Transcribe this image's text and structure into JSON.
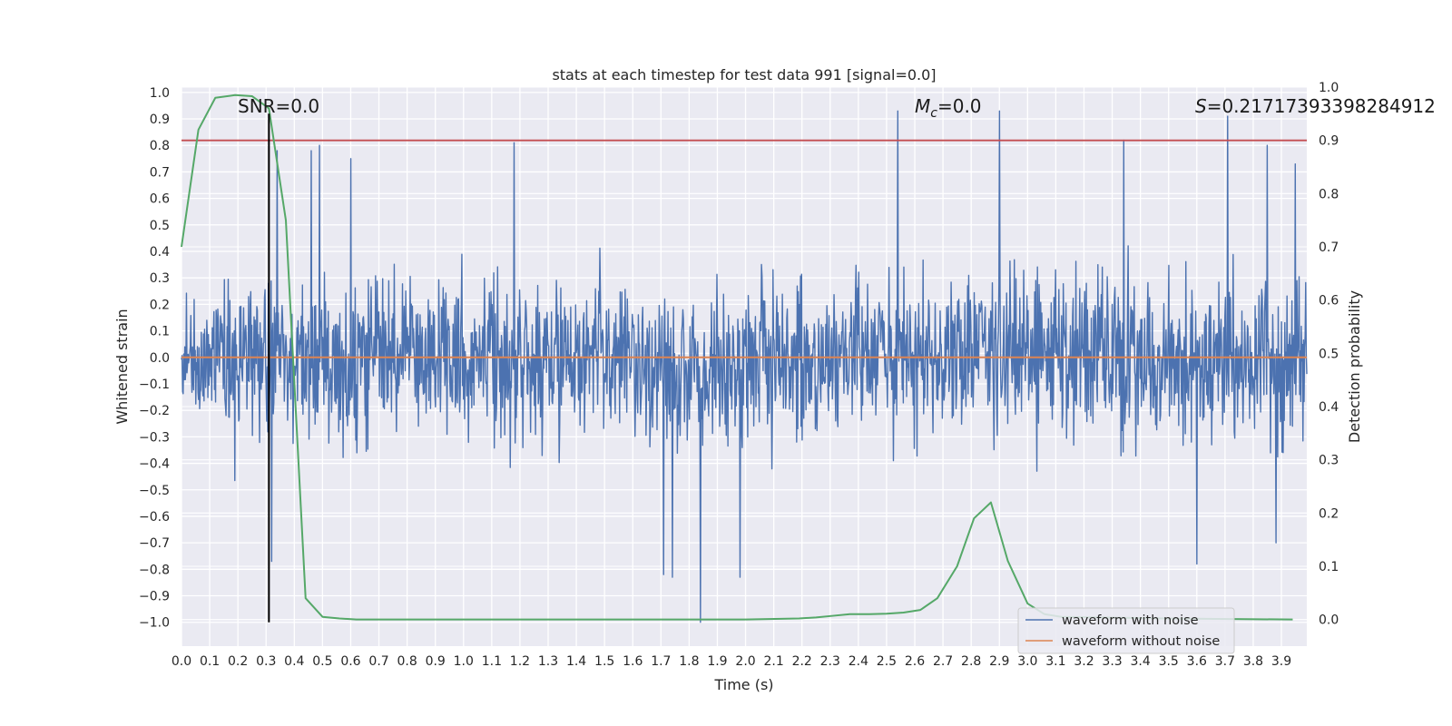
{
  "chart_data": {
    "type": "line",
    "title": "stats at each timestep for test data 991 [signal=0.0]",
    "xlabel": "Time (s)",
    "ylabel": "Whitened strain",
    "y2label": "Detection probability",
    "xlim": [
      0.0,
      3.99
    ],
    "ylim": [
      -1.09,
      1.02
    ],
    "y2lim": [
      -0.05,
      1.0
    ],
    "x_ticks": [
      0.0,
      0.1,
      0.2,
      0.3,
      0.4,
      0.5,
      0.6,
      0.7,
      0.8,
      0.9,
      1.0,
      1.1,
      1.2,
      1.3,
      1.4,
      1.5,
      1.6,
      1.7,
      1.8,
      1.9,
      2.0,
      2.1,
      2.2,
      2.3,
      2.4,
      2.5,
      2.6,
      2.7,
      2.8,
      2.9,
      3.0,
      3.1,
      3.2,
      3.3,
      3.4,
      3.5,
      3.6,
      3.7,
      3.8,
      3.9
    ],
    "y_ticks": [
      -1.0,
      -0.9,
      -0.8,
      -0.7,
      -0.6,
      -0.5,
      -0.4,
      -0.3,
      -0.2,
      -0.1,
      0.0,
      0.1,
      0.2,
      0.3,
      0.4,
      0.5,
      0.6,
      0.7,
      0.8,
      0.9,
      1.0
    ],
    "y2_ticks": [
      0.0,
      0.1,
      0.2,
      0.3,
      0.4,
      0.5,
      0.6,
      0.7,
      0.8,
      0.9,
      1.0
    ],
    "grid": true,
    "noise": {
      "name": "waveform with noise",
      "color": "#4c72b0",
      "samples": 2048,
      "t_end": 3.99,
      "seed": 991,
      "spikes": [
        {
          "t": 0.32,
          "v": -0.77
        },
        {
          "t": 0.34,
          "v": 0.78
        },
        {
          "t": 0.46,
          "v": 0.78
        },
        {
          "t": 0.49,
          "v": 0.8
        },
        {
          "t": 0.6,
          "v": 0.75
        },
        {
          "t": 1.18,
          "v": 0.81
        },
        {
          "t": 1.71,
          "v": -0.82
        },
        {
          "t": 1.74,
          "v": -0.83
        },
        {
          "t": 1.84,
          "v": -1.0
        },
        {
          "t": 1.98,
          "v": -0.83
        },
        {
          "t": 2.54,
          "v": 0.93
        },
        {
          "t": 2.9,
          "v": 0.93
        },
        {
          "t": 3.34,
          "v": 0.82
        },
        {
          "t": 3.6,
          "v": -0.78
        },
        {
          "t": 3.71,
          "v": 0.91
        },
        {
          "t": 3.85,
          "v": 0.8
        },
        {
          "t": 3.88,
          "v": -0.7
        },
        {
          "t": 3.95,
          "v": 0.73
        }
      ]
    },
    "clean": {
      "name": "waveform without noise",
      "color": "#dd8452",
      "value": 0.0
    },
    "threshold": {
      "color": "#c44e52",
      "value": 0.9
    },
    "marker": {
      "color": "#000000",
      "t": 0.31,
      "y_from": -1.0,
      "y_to": 0.92
    },
    "probability": {
      "color": "#55a868",
      "x": [
        0.0,
        0.06,
        0.12,
        0.19,
        0.25,
        0.31,
        0.37,
        0.44,
        0.5,
        0.56,
        0.62,
        1.0,
        1.5,
        2.0,
        2.19,
        2.25,
        2.31,
        2.37,
        2.44,
        2.5,
        2.56,
        2.62,
        2.68,
        2.75,
        2.81,
        2.87,
        2.93,
        3.0,
        3.06,
        3.12,
        3.5,
        3.94
      ],
      "y": [
        0.7,
        0.92,
        0.98,
        0.985,
        0.983,
        0.96,
        0.75,
        0.04,
        0.005,
        0.002,
        0.0,
        0.0,
        0.0,
        0.0,
        0.002,
        0.004,
        0.007,
        0.01,
        0.01,
        0.011,
        0.013,
        0.018,
        0.04,
        0.1,
        0.19,
        0.22,
        0.11,
        0.03,
        0.01,
        0.005,
        0.002,
        0.0
      ]
    },
    "annotations": {
      "snr": "SNR=0.0",
      "mc_symbol": "M",
      "mc_sub": "c",
      "mc_value": "=0.0",
      "s_symbol": "S",
      "s_value": "=0.21717393398284912"
    },
    "legend": {
      "position": "lower right",
      "items": [
        {
          "name": "waveform with noise",
          "color": "#4c72b0"
        },
        {
          "name": "waveform without noise",
          "color": "#dd8452"
        }
      ]
    }
  }
}
